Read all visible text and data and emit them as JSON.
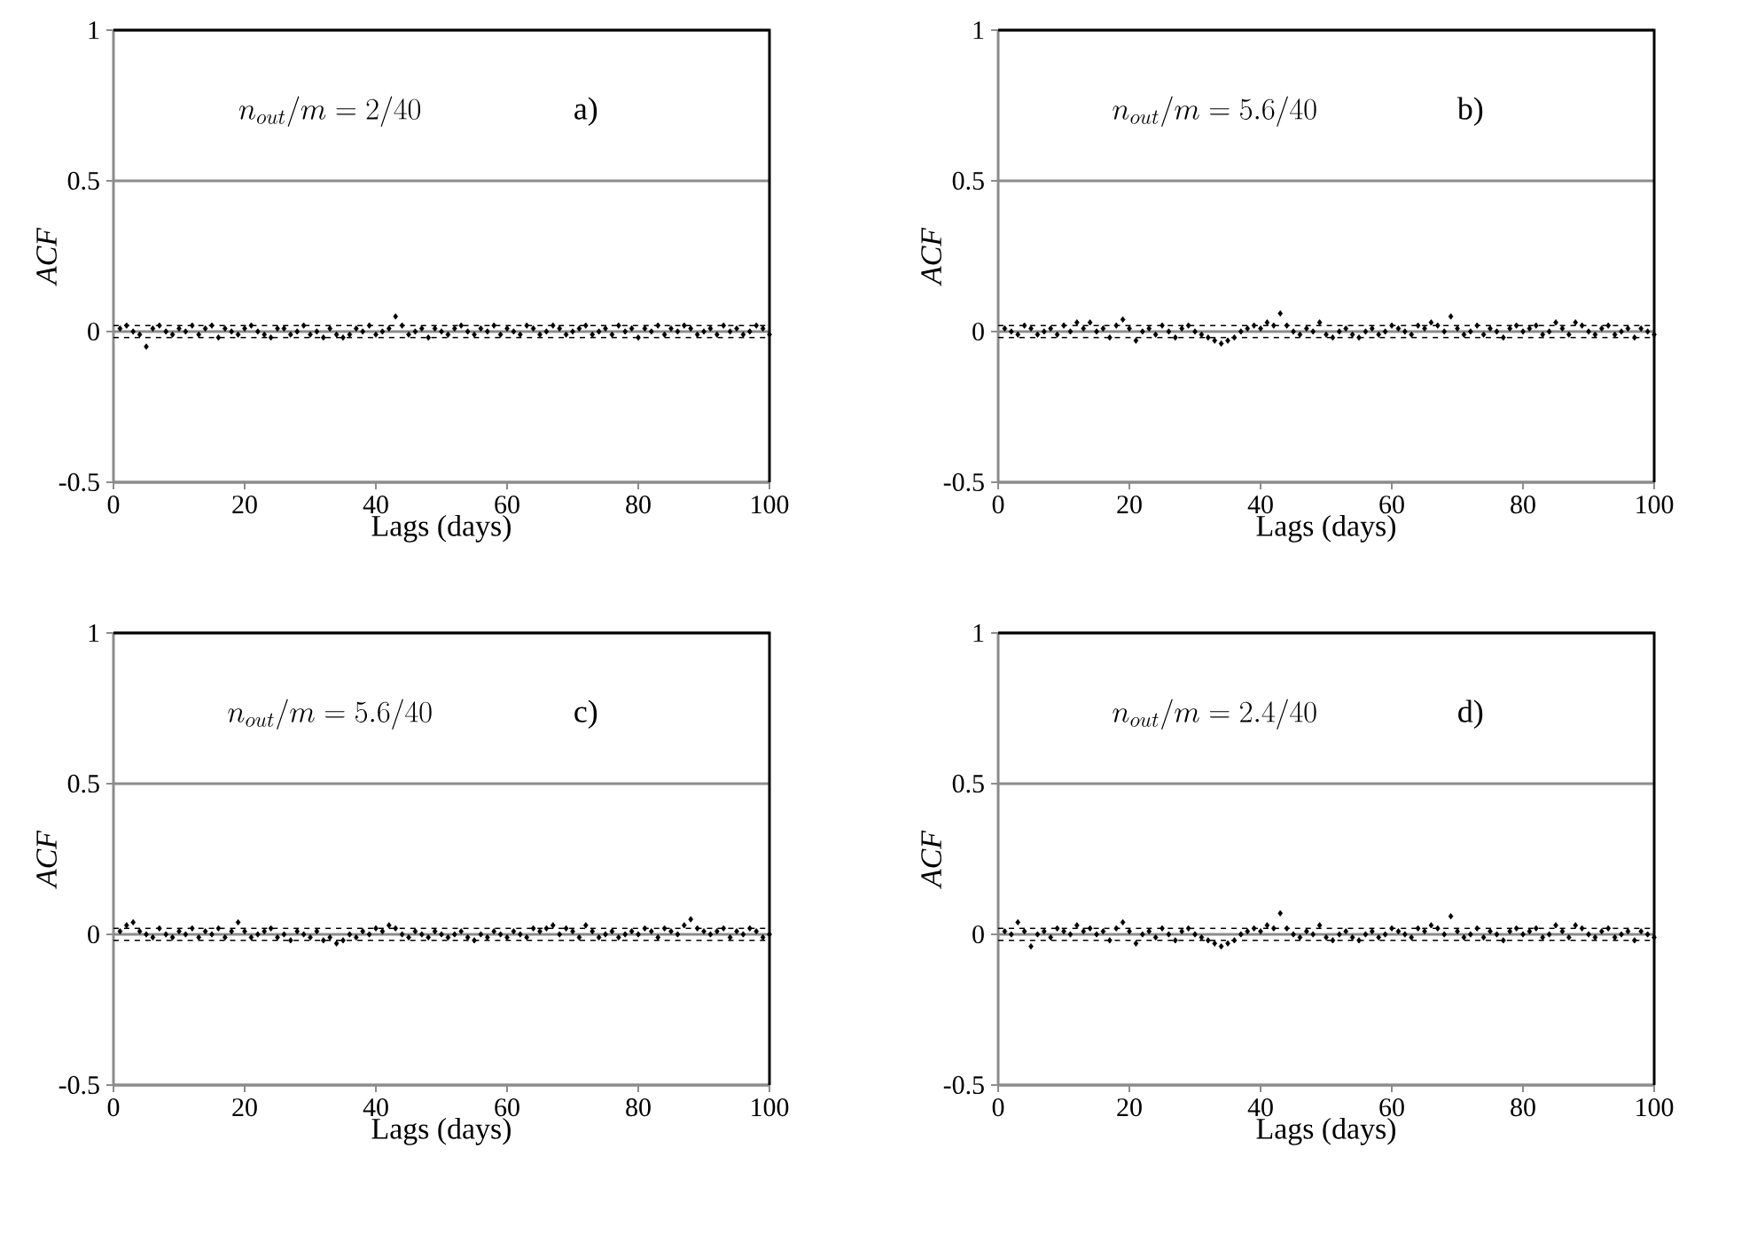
{
  "chart_data": [
    {
      "type": "scatter",
      "xlabel": "Lags (days)",
      "ylabel": "ACF",
      "annotations": [
        "n_{out}/m = 2/40",
        "a)"
      ],
      "marker": "diamond",
      "grid": "y",
      "xlim": [
        0,
        100
      ],
      "ylim": [
        -0.5,
        1
      ],
      "xticks": [
        0,
        20,
        40,
        60,
        80,
        100
      ],
      "yticks": [
        -0.5,
        0,
        0.5,
        1
      ],
      "ref_lines": [
        {
          "axis": "y",
          "value": 0.02,
          "color": "#000000",
          "line_style": "dashed"
        },
        {
          "axis": "y",
          "value": -0.02,
          "color": "#000000",
          "line_style": "dashed"
        }
      ],
      "series": [
        {
          "color": "#000000",
          "x": [
            1,
            2,
            3,
            4,
            5,
            6,
            7,
            8,
            9,
            10,
            11,
            12,
            13,
            14,
            15,
            16,
            17,
            18,
            19,
            20,
            21,
            22,
            23,
            24,
            25,
            26,
            27,
            28,
            29,
            30,
            31,
            32,
            33,
            34,
            35,
            36,
            37,
            38,
            39,
            40,
            41,
            42,
            43,
            44,
            45,
            46,
            47,
            48,
            49,
            50,
            51,
            52,
            53,
            54,
            55,
            56,
            57,
            58,
            59,
            60,
            61,
            62,
            63,
            64,
            65,
            66,
            67,
            68,
            69,
            70,
            71,
            72,
            73,
            74,
            75,
            76,
            77,
            78,
            79,
            80,
            81,
            82,
            83,
            84,
            85,
            86,
            87,
            88,
            89,
            90,
            91,
            92,
            93,
            94,
            95,
            96,
            97,
            98,
            99,
            100
          ],
          "values": [
            0.01,
            0.02,
            0.0,
            -0.01,
            -0.05,
            0.01,
            0.02,
            0.0,
            -0.01,
            0.01,
            0.0,
            0.02,
            -0.01,
            0.01,
            0.02,
            -0.02,
            0.01,
            0.0,
            -0.01,
            0.01,
            0.02,
            0.0,
            -0.01,
            -0.02,
            0.01,
            0.01,
            -0.01,
            0.0,
            0.02,
            -0.01,
            0.0,
            -0.02,
            0.01,
            -0.01,
            -0.02,
            -0.01,
            0.01,
            0.0,
            0.02,
            -0.01,
            0.0,
            0.01,
            0.05,
            0.02,
            -0.01,
            0.0,
            0.01,
            -0.02,
            0.01,
            0.0,
            -0.01,
            0.01,
            0.02,
            0.0,
            -0.01,
            0.01,
            0.0,
            0.02,
            -0.01,
            0.01,
            0.0,
            -0.01,
            0.02,
            0.01,
            -0.01,
            0.0,
            0.02,
            0.01,
            -0.01,
            0.0,
            0.01,
            0.02,
            -0.01,
            0.0,
            0.01,
            -0.01,
            0.02,
            0.0,
            0.01,
            -0.02,
            0.01,
            0.0,
            0.02,
            -0.01,
            0.01,
            0.0,
            0.02,
            0.01,
            -0.01,
            0.0,
            0.01,
            -0.01,
            0.02,
            0.0,
            0.01,
            -0.01,
            0.0,
            0.02,
            0.01,
            -0.01
          ]
        }
      ]
    },
    {
      "type": "scatter",
      "xlabel": "Lags (days)",
      "ylabel": "ACF",
      "annotations": [
        "n_{out}/m = 5.6/40",
        "b)"
      ],
      "marker": "diamond",
      "grid": "y",
      "xlim": [
        0,
        100
      ],
      "ylim": [
        -0.5,
        1
      ],
      "xticks": [
        0,
        20,
        40,
        60,
        80,
        100
      ],
      "yticks": [
        -0.5,
        0,
        0.5,
        1
      ],
      "ref_lines": [
        {
          "axis": "y",
          "value": 0.02,
          "color": "#000000",
          "line_style": "dashed"
        },
        {
          "axis": "y",
          "value": -0.02,
          "color": "#000000",
          "line_style": "dashed"
        }
      ],
      "series": [
        {
          "color": "#000000",
          "x": [
            1,
            2,
            3,
            4,
            5,
            6,
            7,
            8,
            9,
            10,
            11,
            12,
            13,
            14,
            15,
            16,
            17,
            18,
            19,
            20,
            21,
            22,
            23,
            24,
            25,
            26,
            27,
            28,
            29,
            30,
            31,
            32,
            33,
            34,
            35,
            36,
            37,
            38,
            39,
            40,
            41,
            42,
            43,
            44,
            45,
            46,
            47,
            48,
            49,
            50,
            51,
            52,
            53,
            54,
            55,
            56,
            57,
            58,
            59,
            60,
            61,
            62,
            63,
            64,
            65,
            66,
            67,
            68,
            69,
            70,
            71,
            72,
            73,
            74,
            75,
            76,
            77,
            78,
            79,
            80,
            81,
            82,
            83,
            84,
            85,
            86,
            87,
            88,
            89,
            90,
            91,
            92,
            93,
            94,
            95,
            96,
            97,
            98,
            99,
            100
          ],
          "values": [
            0.01,
            0.0,
            -0.01,
            0.02,
            0.01,
            -0.01,
            0.0,
            0.01,
            -0.01,
            0.02,
            0.0,
            0.03,
            0.01,
            0.03,
            0.0,
            0.01,
            -0.02,
            0.02,
            0.04,
            0.01,
            -0.03,
            0.0,
            0.01,
            -0.01,
            0.02,
            0.0,
            -0.02,
            0.01,
            0.02,
            0.0,
            -0.01,
            -0.02,
            -0.03,
            -0.04,
            -0.03,
            -0.02,
            0.0,
            0.01,
            0.02,
            0.01,
            0.03,
            0.02,
            0.06,
            0.02,
            0.0,
            -0.01,
            0.01,
            0.0,
            0.03,
            -0.01,
            -0.02,
            0.0,
            0.01,
            -0.01,
            -0.02,
            0.0,
            0.01,
            -0.01,
            0.0,
            0.02,
            0.01,
            0.0,
            -0.01,
            0.02,
            0.01,
            0.03,
            0.02,
            0.0,
            0.05,
            0.01,
            -0.01,
            0.0,
            0.02,
            -0.01,
            0.01,
            0.0,
            -0.02,
            0.01,
            0.02,
            0.0,
            0.01,
            0.02,
            -0.01,
            0.0,
            0.03,
            0.01,
            -0.01,
            0.03,
            0.02,
            0.0,
            -0.01,
            0.01,
            0.02,
            -0.01,
            0.0,
            0.01,
            -0.02,
            0.01,
            0.0,
            -0.01
          ]
        }
      ]
    },
    {
      "type": "scatter",
      "xlabel": "Lags (days)",
      "ylabel": "ACF",
      "annotations": [
        "n_{out}/m = 5.6/40",
        "c)"
      ],
      "marker": "diamond",
      "grid": "y",
      "xlim": [
        0,
        100
      ],
      "ylim": [
        -0.5,
        1
      ],
      "xticks": [
        0,
        20,
        40,
        60,
        80,
        100
      ],
      "yticks": [
        -0.5,
        0,
        0.5,
        1
      ],
      "ref_lines": [
        {
          "axis": "y",
          "value": 0.02,
          "color": "#000000",
          "line_style": "dashed"
        },
        {
          "axis": "y",
          "value": -0.02,
          "color": "#000000",
          "line_style": "dashed"
        }
      ],
      "series": [
        {
          "color": "#000000",
          "x": [
            1,
            2,
            3,
            4,
            5,
            6,
            7,
            8,
            9,
            10,
            11,
            12,
            13,
            14,
            15,
            16,
            17,
            18,
            19,
            20,
            21,
            22,
            23,
            24,
            25,
            26,
            27,
            28,
            29,
            30,
            31,
            32,
            33,
            34,
            35,
            36,
            37,
            38,
            39,
            40,
            41,
            42,
            43,
            44,
            45,
            46,
            47,
            48,
            49,
            50,
            51,
            52,
            53,
            54,
            55,
            56,
            57,
            58,
            59,
            60,
            61,
            62,
            63,
            64,
            65,
            66,
            67,
            68,
            69,
            70,
            71,
            72,
            73,
            74,
            75,
            76,
            77,
            78,
            79,
            80,
            81,
            82,
            83,
            84,
            85,
            86,
            87,
            88,
            89,
            90,
            91,
            92,
            93,
            94,
            95,
            96,
            97,
            98,
            99,
            100
          ],
          "values": [
            0.01,
            0.03,
            0.04,
            0.01,
            0.0,
            -0.01,
            0.02,
            0.0,
            -0.01,
            0.01,
            0.0,
            0.02,
            -0.01,
            0.01,
            0.0,
            0.02,
            -0.01,
            0.01,
            0.04,
            0.01,
            -0.01,
            0.0,
            0.01,
            0.02,
            -0.01,
            0.0,
            -0.02,
            0.01,
            0.0,
            -0.01,
            0.01,
            -0.02,
            -0.01,
            -0.03,
            -0.02,
            0.0,
            -0.01,
            0.01,
            0.0,
            0.02,
            0.01,
            0.03,
            0.02,
            0.0,
            -0.01,
            0.01,
            0.0,
            -0.01,
            0.01,
            0.0,
            -0.01,
            0.0,
            0.01,
            -0.01,
            -0.02,
            0.0,
            -0.01,
            0.01,
            0.0,
            -0.01,
            0.01,
            0.0,
            -0.01,
            0.02,
            0.01,
            0.02,
            0.03,
            0.0,
            0.02,
            0.01,
            -0.01,
            0.03,
            0.01,
            -0.01,
            0.0,
            0.01,
            -0.01,
            0.0,
            0.01,
            0.0,
            0.02,
            0.01,
            -0.01,
            0.02,
            0.01,
            0.0,
            0.03,
            0.05,
            0.02,
            0.01,
            0.0,
            0.01,
            0.02,
            -0.01,
            0.01,
            0.0,
            0.02,
            0.01,
            -0.01,
            0.0
          ]
        }
      ]
    },
    {
      "type": "scatter",
      "xlabel": "Lags (days)",
      "ylabel": "ACF",
      "annotations": [
        "n_{out}/m = 2.4/40",
        "d)"
      ],
      "marker": "diamond",
      "grid": "y",
      "xlim": [
        0,
        100
      ],
      "ylim": [
        -0.5,
        1
      ],
      "xticks": [
        0,
        20,
        40,
        60,
        80,
        100
      ],
      "yticks": [
        -0.5,
        0,
        0.5,
        1
      ],
      "ref_lines": [
        {
          "axis": "y",
          "value": 0.02,
          "color": "#000000",
          "line_style": "dashed"
        },
        {
          "axis": "y",
          "value": -0.02,
          "color": "#000000",
          "line_style": "dashed"
        }
      ],
      "series": [
        {
          "color": "#000000",
          "x": [
            1,
            2,
            3,
            4,
            5,
            6,
            7,
            8,
            9,
            10,
            11,
            12,
            13,
            14,
            15,
            16,
            17,
            18,
            19,
            20,
            21,
            22,
            23,
            24,
            25,
            26,
            27,
            28,
            29,
            30,
            31,
            32,
            33,
            34,
            35,
            36,
            37,
            38,
            39,
            40,
            41,
            42,
            43,
            44,
            45,
            46,
            47,
            48,
            49,
            50,
            51,
            52,
            53,
            54,
            55,
            56,
            57,
            58,
            59,
            60,
            61,
            62,
            63,
            64,
            65,
            66,
            67,
            68,
            69,
            70,
            71,
            72,
            73,
            74,
            75,
            76,
            77,
            78,
            79,
            80,
            81,
            82,
            83,
            84,
            85,
            86,
            87,
            88,
            89,
            90,
            91,
            92,
            93,
            94,
            95,
            96,
            97,
            98,
            99,
            100
          ],
          "values": [
            0.01,
            0.0,
            0.04,
            0.01,
            -0.04,
            0.0,
            0.01,
            -0.01,
            0.02,
            0.01,
            0.0,
            0.03,
            0.01,
            0.02,
            0.0,
            0.01,
            -0.02,
            0.02,
            0.04,
            0.01,
            -0.03,
            0.0,
            0.01,
            -0.01,
            0.02,
            0.0,
            -0.02,
            0.01,
            0.02,
            0.0,
            -0.01,
            -0.02,
            -0.03,
            -0.04,
            -0.03,
            -0.02,
            0.0,
            0.01,
            0.02,
            0.01,
            0.03,
            0.02,
            0.07,
            0.02,
            0.0,
            -0.01,
            0.01,
            0.0,
            0.03,
            -0.01,
            -0.02,
            0.0,
            0.01,
            -0.01,
            -0.02,
            0.0,
            0.01,
            -0.01,
            0.0,
            0.02,
            0.01,
            0.0,
            -0.01,
            0.02,
            0.01,
            0.03,
            0.02,
            0.0,
            0.06,
            0.01,
            -0.01,
            0.0,
            0.02,
            -0.01,
            0.01,
            0.0,
            -0.02,
            0.01,
            0.02,
            0.0,
            0.01,
            0.02,
            -0.01,
            0.0,
            0.03,
            0.01,
            -0.01,
            0.03,
            0.02,
            0.0,
            -0.01,
            0.01,
            0.02,
            -0.01,
            0.0,
            0.01,
            -0.02,
            0.01,
            0.0,
            -0.01
          ]
        }
      ]
    }
  ]
}
